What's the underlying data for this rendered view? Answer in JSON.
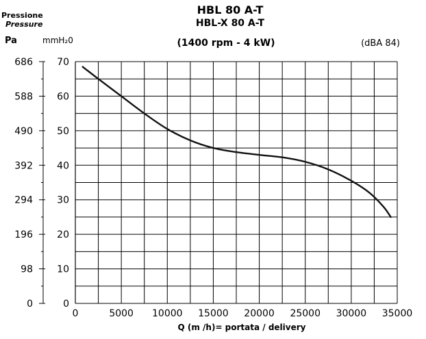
{
  "header": {
    "pressione_label": "Pressione",
    "pressure_label": "Pressure",
    "pa_unit": "Pa",
    "mmh2o_unit": "mmH₂0",
    "title_main": "HBL 80 A-T",
    "title_secondary": "HBL-X 80 A-T",
    "speed_power": "(1400 rpm - 4 kW)",
    "noise_level": "(dBA 84)"
  },
  "chart_data": {
    "type": "line",
    "title": "HBL 80 A-T",
    "subtitle": "HBL-X 80 A-T",
    "xlabel": "Q (m /h)= portata / delivery",
    "ylabel": "mmH₂0",
    "secondary_ylabel": "Pa",
    "xlim": [
      0,
      35000
    ],
    "ylim": [
      0,
      70
    ],
    "x_ticks": [
      0,
      5000,
      10000,
      15000,
      20000,
      25000,
      30000,
      35000
    ],
    "x_tick_labels": [
      "0",
      "5000",
      "10000",
      "15000",
      "20000",
      "25000",
      "30000",
      "35000"
    ],
    "y_ticks": [
      0,
      10,
      20,
      30,
      40,
      50,
      60,
      70
    ],
    "y_tick_labels": [
      "0",
      "10",
      "20",
      "30",
      "40",
      "50",
      "60",
      "70"
    ],
    "secondary_y_ticks": [
      0,
      10,
      20,
      30,
      40,
      50,
      60,
      70
    ],
    "secondary_y_tick_labels": [
      "0",
      "98",
      "196",
      "294",
      "392",
      "490",
      "588",
      "686"
    ],
    "grid": true,
    "series": [
      {
        "x": [
          800,
          2500,
          5000,
          7500,
          10000,
          12500,
          15000,
          17500,
          20000,
          22500,
          25000,
          27500,
          30000,
          32000,
          33500,
          34300
        ],
        "y": [
          68.5,
          65.0,
          60.0,
          55.0,
          50.5,
          47.2,
          45.0,
          43.8,
          43.0,
          42.3,
          41.0,
          38.8,
          35.5,
          32.0,
          28.0,
          25.0
        ]
      }
    ],
    "colors": {
      "line": "#111111",
      "grid": "#000000",
      "background": "#ffffff"
    }
  }
}
